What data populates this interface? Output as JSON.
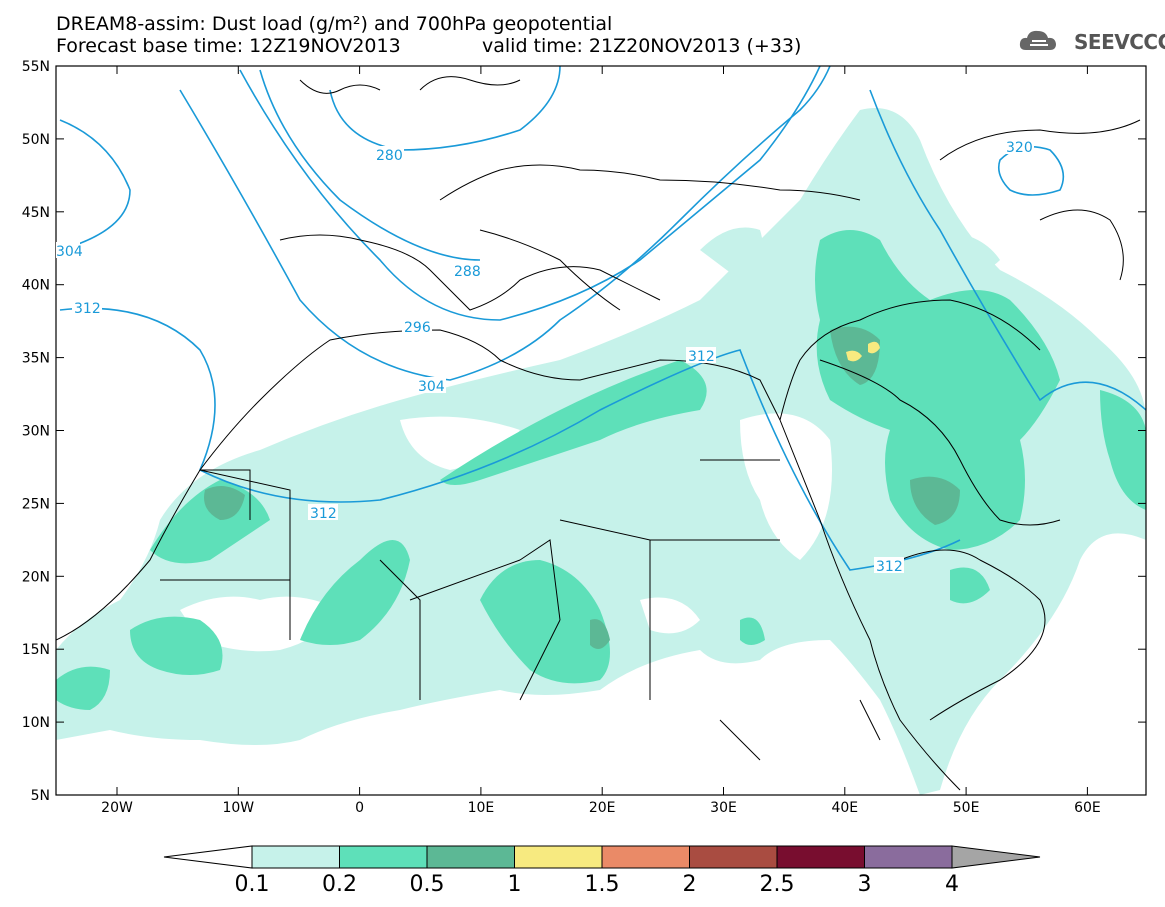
{
  "header": {
    "title_line1": "DREAM8-assim: Dust load (g/m²) and 700hPa geopotential",
    "base_time": "Forecast base time: 12Z19NOV2013",
    "valid_time": "valid time: 21Z20NOV2013 (+33)"
  },
  "logo": {
    "text": "SEEVCCC",
    "icon": "cloud-icon",
    "color": "#555555"
  },
  "axes": {
    "lat_labels": [
      "55N",
      "50N",
      "45N",
      "40N",
      "35N",
      "30N",
      "25N",
      "20N",
      "15N",
      "10N",
      "5N"
    ],
    "lon_labels": [
      "20W",
      "10W",
      "0",
      "10E",
      "20E",
      "30E",
      "40E",
      "50E",
      "60E"
    ]
  },
  "contours": {
    "labels": [
      "280",
      "288",
      "296",
      "304",
      "304",
      "312",
      "312",
      "312",
      "312",
      "320"
    ],
    "color": "#1a9ad8"
  },
  "colorbar": {
    "ticks": [
      "0.1",
      "0.2",
      "0.5",
      "1",
      "1.5",
      "2",
      "2.5",
      "3",
      "4"
    ],
    "colors": [
      "#ffffff",
      "#c6f2ea",
      "#5ee0b9",
      "#5cb895",
      "#f7ea80",
      "#ea8a67",
      "#a94c41",
      "#780d2f",
      "#8a6c9d",
      "#a5a5a5"
    ]
  }
}
